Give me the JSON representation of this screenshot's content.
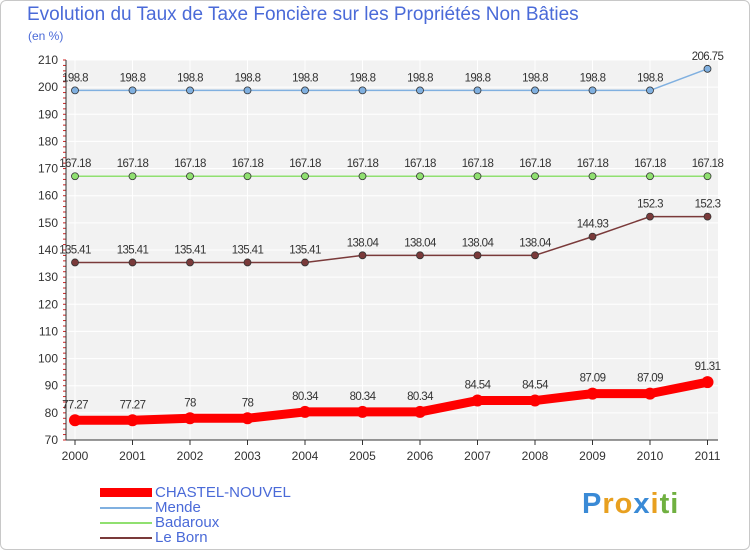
{
  "chart_data": {
    "type": "line",
    "title": "Evolution du Taux de Taxe Foncière sur les Propriétés Non Bâties",
    "ylabel": "(en %)",
    "xlabel": "",
    "ylim": [
      70,
      210
    ],
    "yticks": [
      70,
      80,
      90,
      100,
      110,
      120,
      130,
      140,
      150,
      160,
      170,
      180,
      190,
      200,
      210
    ],
    "categories": [
      "2000",
      "2001",
      "2002",
      "2003",
      "2004",
      "2005",
      "2006",
      "2007",
      "2008",
      "2009",
      "2010",
      "2011"
    ],
    "series": [
      {
        "name": "CHASTEL-NOUVEL",
        "color": "#ff0000",
        "values": [
          77.27,
          77.27,
          78,
          78,
          80.34,
          80.34,
          80.34,
          84.54,
          84.54,
          87.09,
          87.09,
          91.31
        ],
        "labels": [
          "77.27",
          "77.27",
          "78",
          "78",
          "80.34",
          "80.34",
          "80.34",
          "84.54",
          "84.54",
          "87.09",
          "87.09",
          "91.31"
        ]
      },
      {
        "name": "Mende",
        "color": "#80b0e0",
        "values": [
          198.8,
          198.8,
          198.8,
          198.8,
          198.8,
          198.8,
          198.8,
          198.8,
          198.8,
          198.8,
          198.8,
          206.75
        ],
        "labels": [
          "198.8",
          "198.8",
          "198.8",
          "198.8",
          "198.8",
          "198.8",
          "198.8",
          "198.8",
          "198.8",
          "198.8",
          "198.8",
          "206.75"
        ]
      },
      {
        "name": "Badaroux",
        "color": "#90e070",
        "values": [
          167.18,
          167.18,
          167.18,
          167.18,
          167.18,
          167.18,
          167.18,
          167.18,
          167.18,
          167.18,
          167.18,
          167.18
        ],
        "labels": [
          "167.18",
          "167.18",
          "167.18",
          "167.18",
          "167.18",
          "167.18",
          "167.18",
          "167.18",
          "167.18",
          "167.18",
          "167.18",
          "167.18"
        ]
      },
      {
        "name": "Le Born",
        "color": "#7a3a3a",
        "values": [
          135.41,
          135.41,
          135.41,
          135.41,
          135.41,
          138.04,
          138.04,
          138.04,
          138.04,
          144.93,
          152.3,
          152.3
        ],
        "labels": [
          "135.41",
          "135.41",
          "135.41",
          "135.41",
          "135.41",
          "138.04",
          "138.04",
          "138.04",
          "138.04",
          "144.93",
          "152.3",
          "152.3"
        ]
      }
    ]
  },
  "brand": {
    "letters": [
      "P",
      "r",
      "o",
      "x",
      "i",
      "t",
      "i"
    ],
    "colors": [
      "#3a8ad6",
      "#e8a020",
      "#e8a020",
      "#3a8ad6",
      "#e8a020",
      "#70b040",
      "#70b040"
    ]
  }
}
